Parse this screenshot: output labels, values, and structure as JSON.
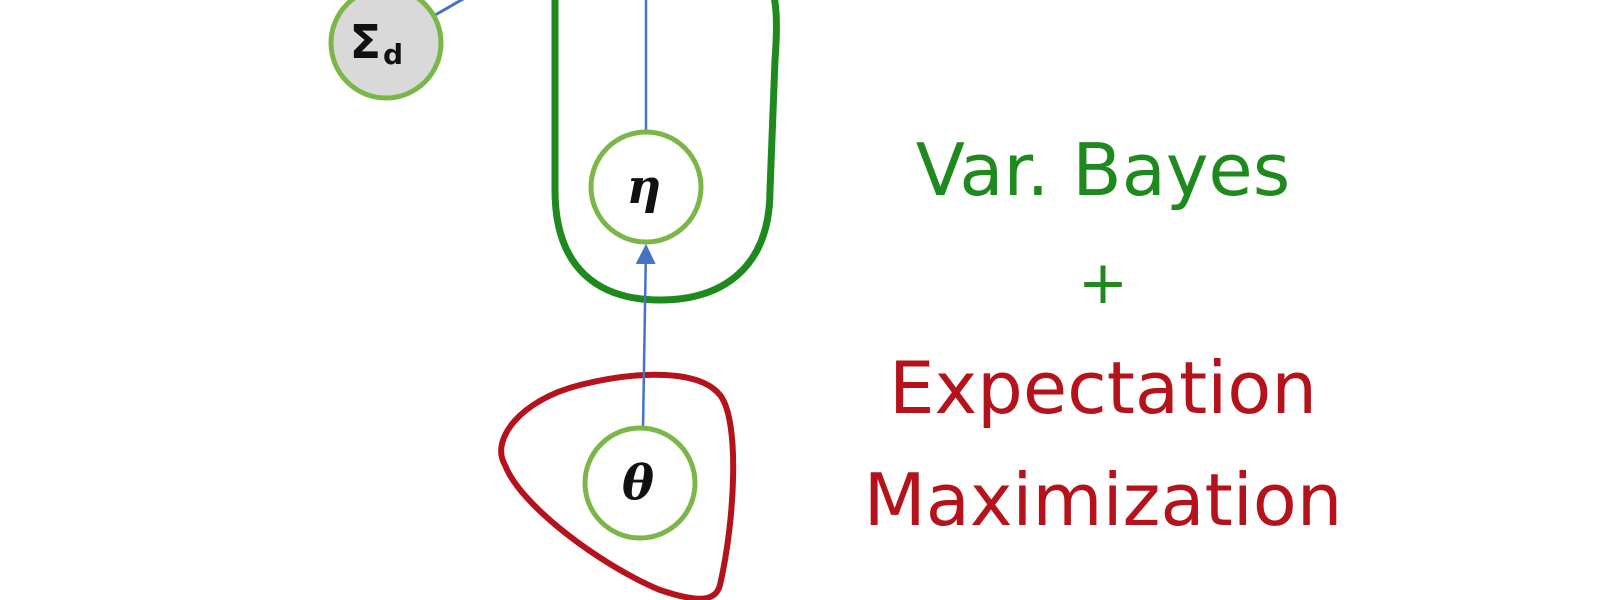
{
  "nodes": {
    "sigma": {
      "symbol": "Σ",
      "subscript": "d"
    },
    "eta": {
      "symbol": "η"
    },
    "theta": {
      "symbol": "θ"
    }
  },
  "captions": {
    "var_bayes": "Var. Bayes",
    "plus": "+",
    "expectation": "Expectation",
    "maximization": "Maximization"
  },
  "colors": {
    "green_region": "#1e8a1e",
    "red_region": "#b5121b",
    "node_border": "#7ab648",
    "node_fill_observed": "#d9d9d9",
    "edge": "#4472c4",
    "caption_green": "#1e8a1e",
    "caption_red": "#b5121b"
  }
}
